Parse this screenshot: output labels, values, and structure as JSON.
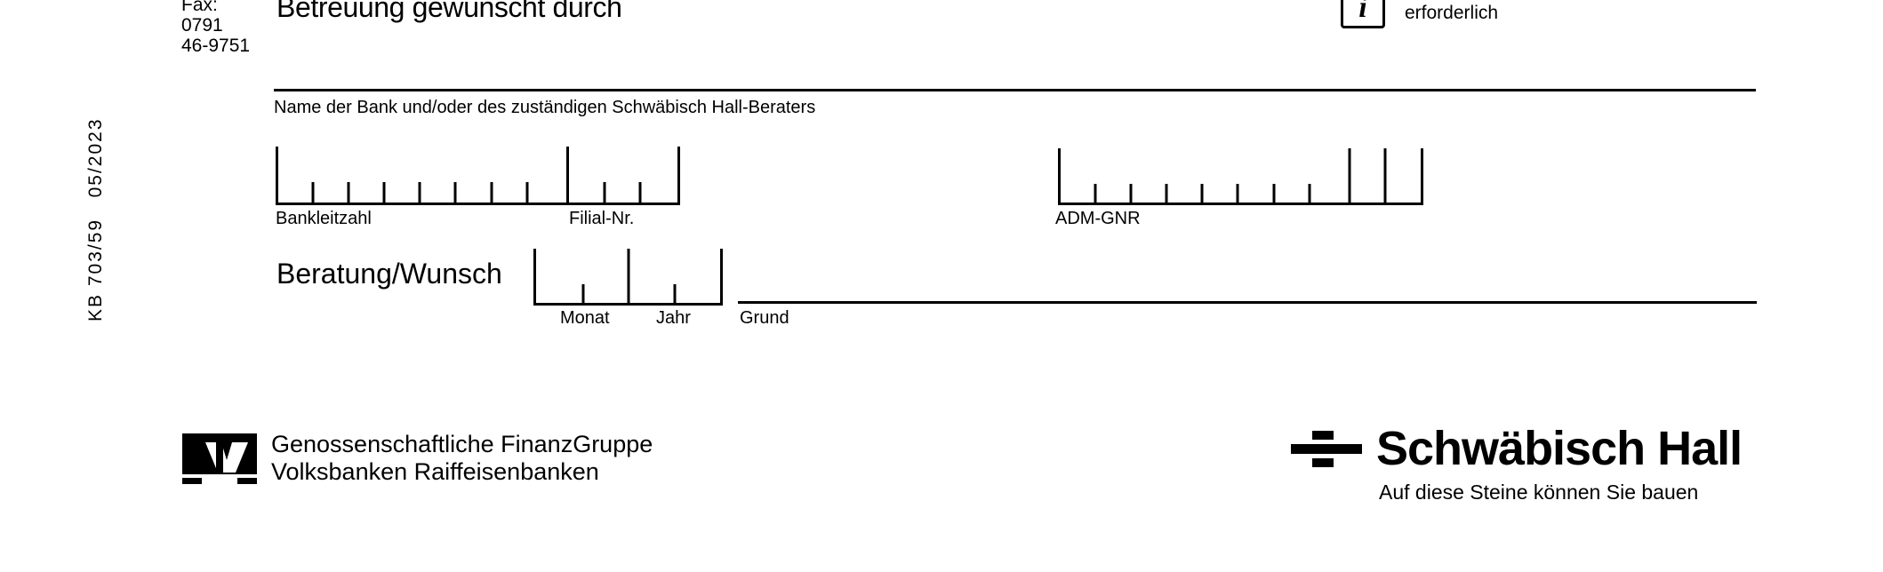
{
  "sidebar": {
    "code": "KB 703/59",
    "date": "05/2023"
  },
  "fax": {
    "label": "Fax:",
    "area": "0791",
    "number": "46-9751"
  },
  "section": {
    "heading": "Betreuung gewünscht durch"
  },
  "info": {
    "icon": "info-icon",
    "glyph": "i",
    "text": "erforderlich"
  },
  "bank": {
    "name_label": "Name der Bank und/oder des zuständigen Schwäbisch Hall-Beraters",
    "blz_label": "Bankleitzahl",
    "filial_label": "Filial-Nr.",
    "adm_label": "ADM-GNR"
  },
  "beratung": {
    "label": "Beratung/Wunsch",
    "month_label": "Monat",
    "year_label": "Jahr",
    "reason_label": "Grund"
  },
  "footer": {
    "vr_logo": "volksbank-raiffeisenbank-logo",
    "vr_line1": "Genossenschaftliche FinanzGruppe",
    "vr_line2": "Volksbanken Raiffeisenbanken",
    "sh_logo": "schwaebisch-hall-bricks-logo",
    "sh_name": "Schwäbisch Hall",
    "sh_slogan": "Auf diese Steine können Sie bauen"
  }
}
